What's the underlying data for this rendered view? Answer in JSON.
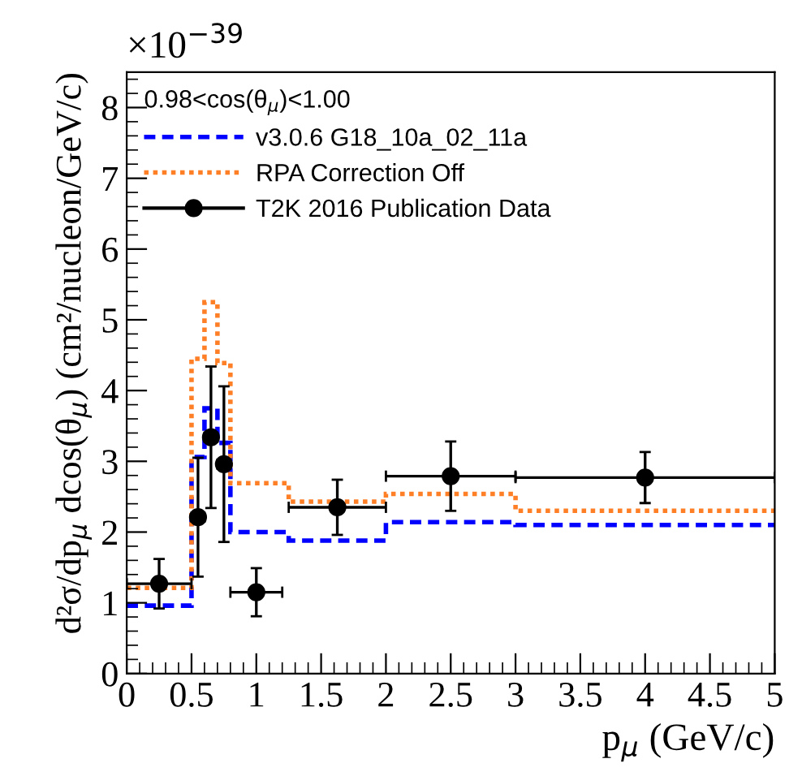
{
  "chart_data": {
    "type": "histogram",
    "xlabel": "p$_{μ}$ (GeV/c)",
    "ylabel": "d²σ/dp$_{μ}$ dcos(θ$_{μ}$) (cm²/nucleon/GeV/c)",
    "legend_title": "0.98<cos(θ$_{μ}$)<1.00",
    "annotations": [
      "×10$^{−39}$"
    ],
    "bins": [
      0,
      0.5,
      0.6,
      0.7,
      0.8,
      1.25,
      2.0,
      3.0,
      5.0
    ],
    "series": [
      {
        "name": "v3.0.6 G18_10a_02_11a",
        "color": "#0000ff",
        "line_style": "dashed",
        "values": [
          0.96,
          3.06,
          3.75,
          3.26,
          2.0,
          1.88,
          2.14,
          2.1
        ]
      },
      {
        "name": "RPA Correction Off",
        "color": "#ff7f27",
        "line_style": "dotted",
        "values": [
          1.21,
          4.45,
          5.25,
          4.39,
          2.69,
          2.43,
          2.54,
          2.3
        ]
      },
      {
        "name": "T2K 2016 Publication Data",
        "type": "scatter",
        "color": "#000000",
        "marker": "circle",
        "x": [
          0.25,
          0.55,
          0.65,
          0.75,
          1.0,
          1.625,
          2.5,
          4.0
        ],
        "values": [
          1.27,
          2.21,
          3.34,
          2.96,
          1.15,
          2.35,
          2.79,
          2.77
        ],
        "errors": [
          0.35,
          0.84,
          1.0,
          1.1,
          0.34,
          0.39,
          0.49,
          0.36
        ],
        "xerrors": [
          0.25,
          0.05,
          0.05,
          0.05,
          0.2,
          0.375,
          0.5,
          1.0
        ]
      }
    ],
    "xlim": [
      0,
      5
    ],
    "xticks": [
      0,
      0.5,
      1,
      1.5,
      2,
      2.5,
      3,
      3.5,
      4,
      4.5,
      5
    ],
    "ylim": [
      0,
      8.5
    ],
    "yticks": [
      0,
      1,
      2,
      3,
      4,
      5,
      6,
      7,
      8
    ],
    "legend": "top",
    "grid": false
  }
}
